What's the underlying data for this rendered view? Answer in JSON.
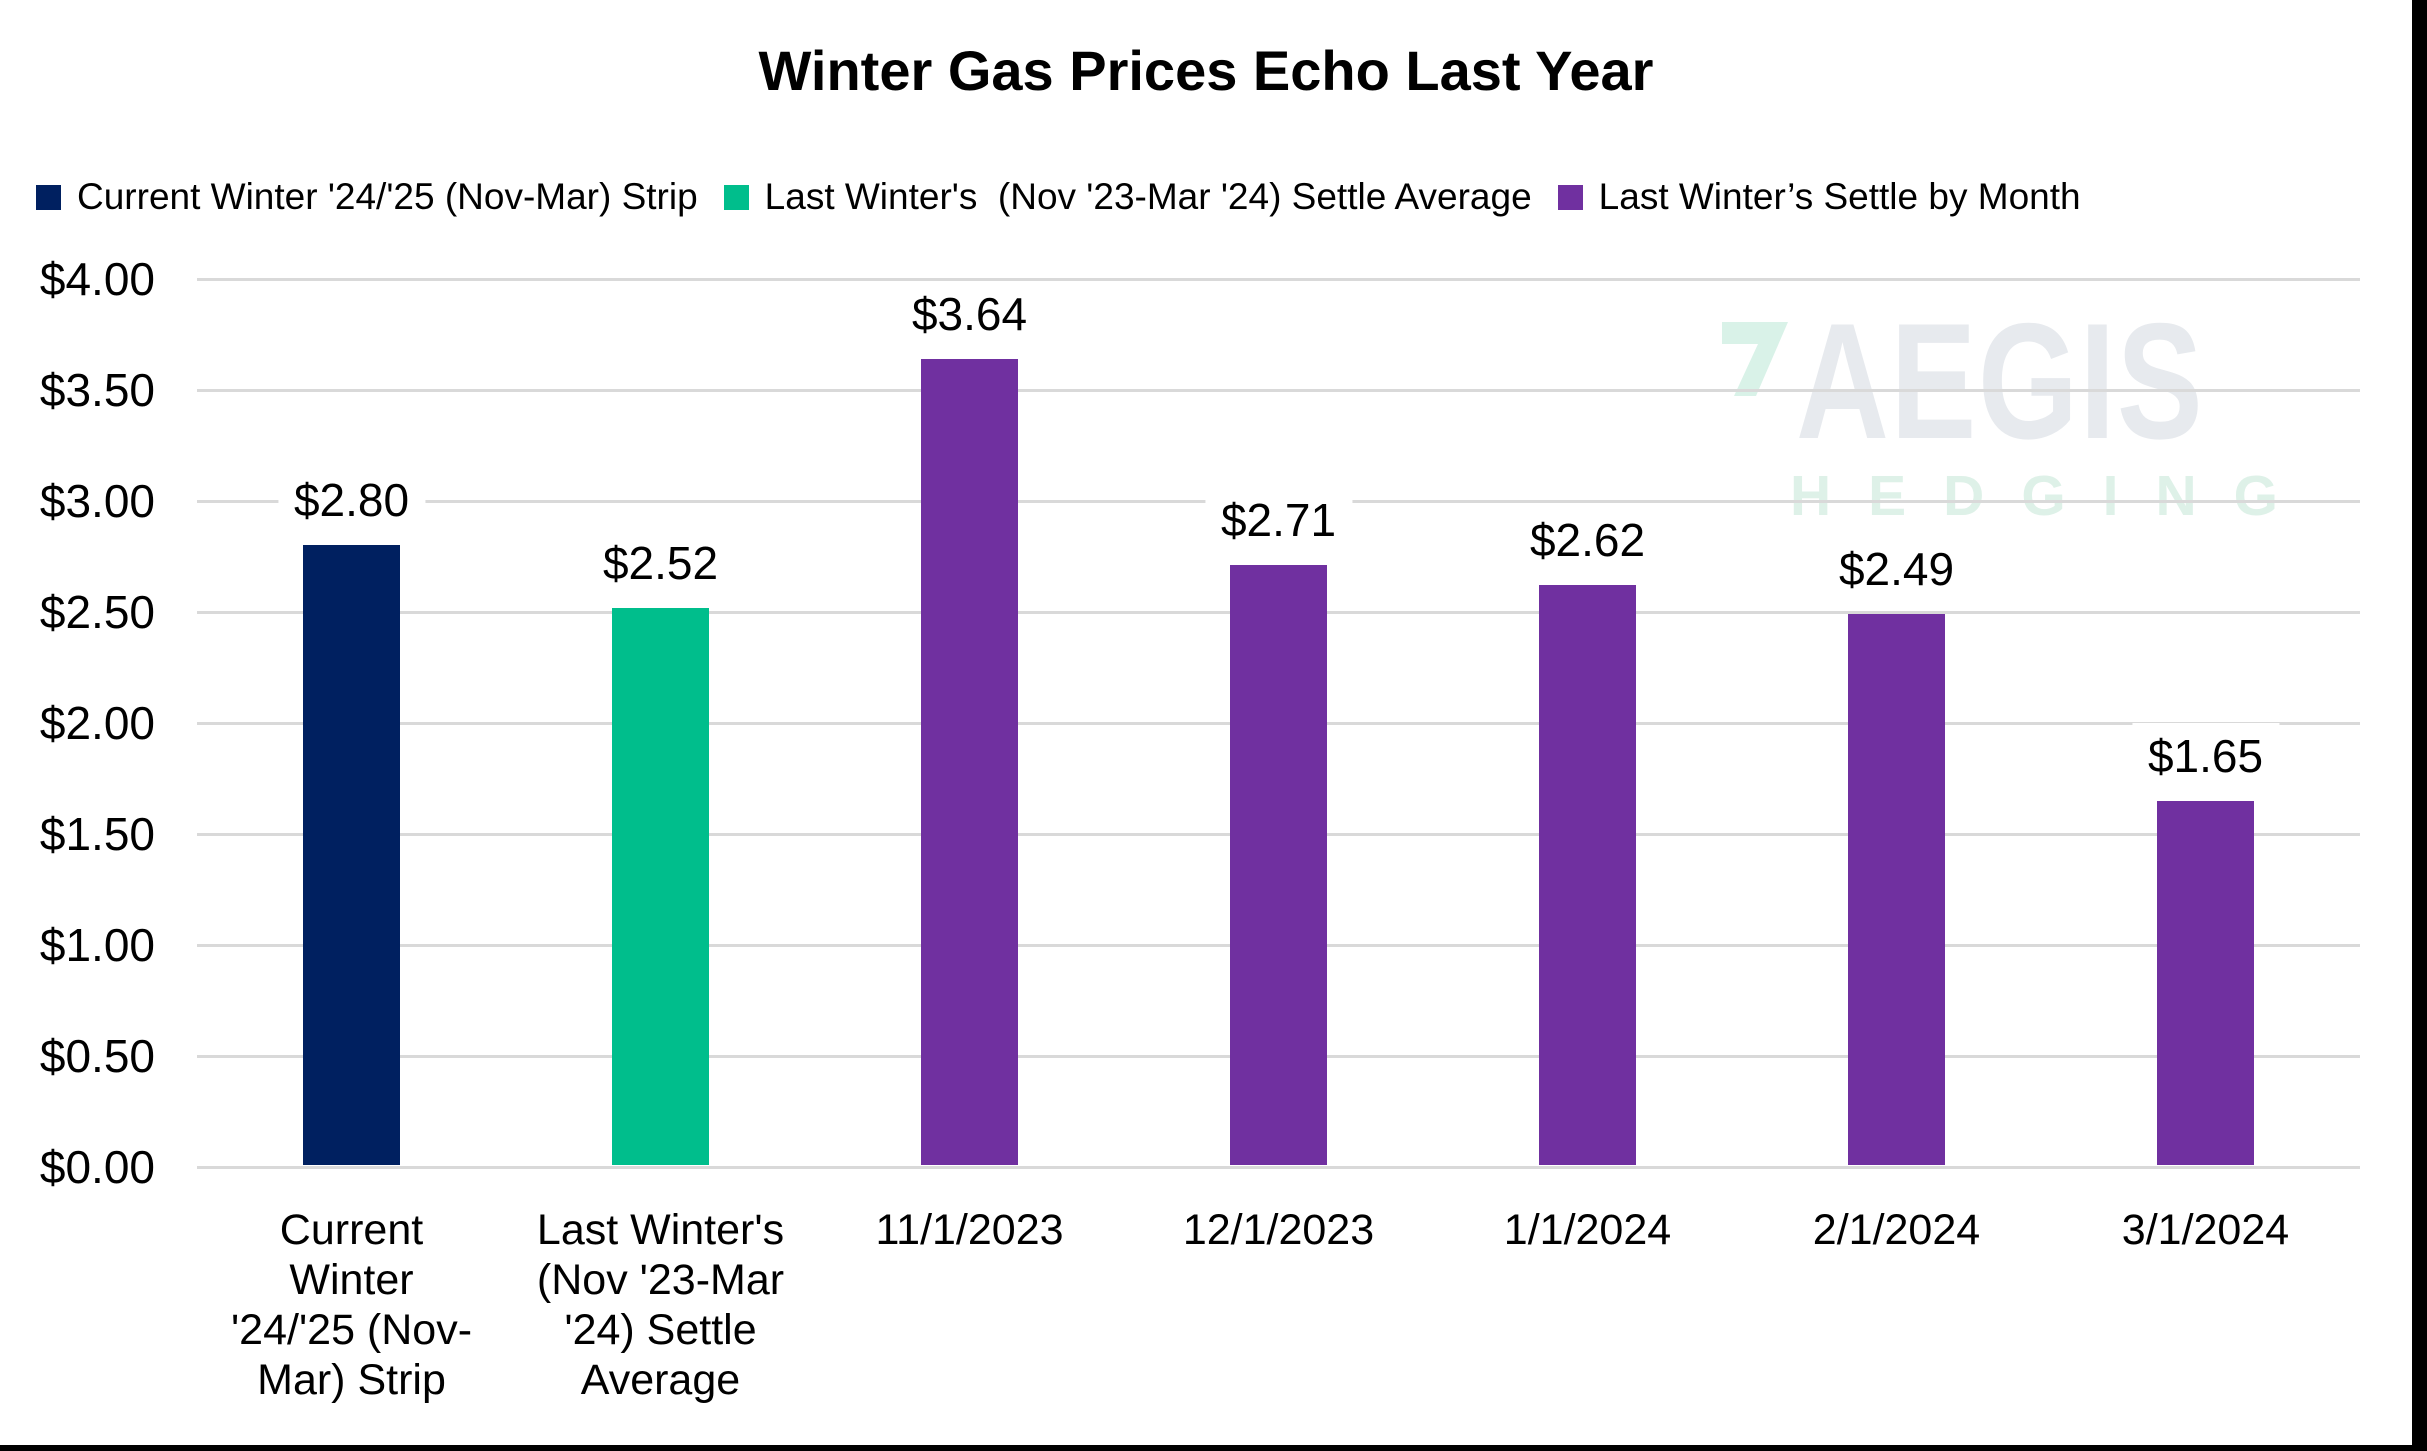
{
  "title": "Winter Gas Prices Echo Last Year",
  "legend": [
    {
      "label": "Current Winter '24/'25 (Nov-Mar) Strip",
      "color": "#002060"
    },
    {
      "label": "Last Winter's  (Nov '23-Mar '24) Settle Average",
      "color": "#00be8c"
    },
    {
      "label": "Last Winter’s Settle by Month",
      "color": "#7030a0"
    }
  ],
  "watermark": {
    "brand": "AEGIS",
    "subbrand": "HEDGING",
    "brand_color": "#e7eaee",
    "subbrand_color": "#def1e8",
    "logo_color": "#d9f2e8"
  },
  "colors": {
    "navy": "#002060",
    "green": "#00be8c",
    "purple": "#7030a0",
    "gridline": "#d9d9d9",
    "text": "#000000",
    "background": "#ffffff"
  },
  "chart_data": {
    "type": "bar",
    "title": "Winter Gas Prices Echo Last Year",
    "categories": [
      "Current\nWinter\n'24/'25 (Nov-\nMar) Strip",
      "Last Winter's\n(Nov '23-Mar\n'24) Settle\nAverage",
      "11/1/2023",
      "12/1/2023",
      "1/1/2024",
      "2/1/2024",
      "3/1/2024"
    ],
    "values": [
      2.8,
      2.52,
      3.64,
      2.71,
      2.62,
      2.49,
      1.65
    ],
    "data_labels": [
      "$2.80",
      "$2.52",
      "$3.64",
      "$2.71",
      "$2.62",
      "$2.49",
      "$1.65"
    ],
    "bar_colors": [
      "#002060",
      "#00be8c",
      "#7030a0",
      "#7030a0",
      "#7030a0",
      "#7030a0",
      "#7030a0"
    ],
    "series_of_bar": [
      "Current Winter '24/'25 (Nov-Mar) Strip",
      "Last Winter's  (Nov '23-Mar '24) Settle Average",
      "Last Winter’s Settle by Month",
      "Last Winter’s Settle by Month",
      "Last Winter’s Settle by Month",
      "Last Winter’s Settle by Month",
      "Last Winter’s Settle by Month"
    ],
    "xlabel": "",
    "ylabel": "",
    "ylim": [
      0,
      4
    ],
    "ytick_step": 0.5,
    "yticks": [
      "$4.00",
      "$3.50",
      "$3.00",
      "$2.50",
      "$2.00",
      "$1.50",
      "$1.00",
      "$0.50",
      "$0.00"
    ],
    "grid": true,
    "legend_position": "top"
  }
}
